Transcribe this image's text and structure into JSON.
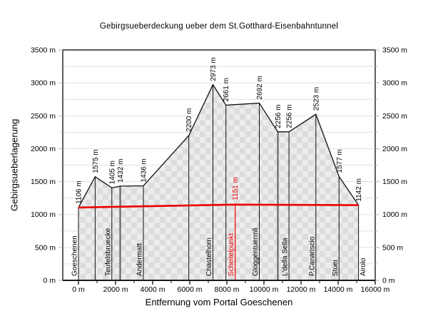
{
  "chart_data": {
    "type": "area",
    "title": "Gebirgsueberdeckung ueber dem St.Gotthard-Eisenbahntunnel",
    "xlabel": "Entfernung vom Portal Goeschenen",
    "ylabel": "Gebirgsueberlagerung",
    "xlim": [
      0,
      16000
    ],
    "ylim": [
      0,
      3500
    ],
    "x_major_step": 2000,
    "x_minor_step": 1000,
    "y_major_step": 500,
    "y_minor_step": 250,
    "grid": "horizontal every 250 m, light gray",
    "legend": "none",
    "axes_mirrored_left_right": true,
    "x_tick_labels": [
      "0 m",
      "2000 m",
      "4000 m",
      "6000 m",
      "8000 m",
      "10000 m",
      "12000 m",
      "14000 m",
      "16000 m"
    ],
    "y_tick_labels": [
      "0 m",
      "500 m",
      "1000 m",
      "1500 m",
      "2000 m",
      "2500 m",
      "3000 m",
      "3500 m"
    ],
    "profile_points": [
      {
        "distance_m": 0,
        "elevation_m": 1106,
        "label": "1106 m",
        "place": "Goeschenen"
      },
      {
        "distance_m": 900,
        "elevation_m": 1575,
        "label": "1575 m"
      },
      {
        "distance_m": 1800,
        "elevation_m": 1405,
        "label": "1405 m",
        "place": "Teufelsbruecke"
      },
      {
        "distance_m": 2250,
        "elevation_m": 1432,
        "label": "1432 m",
        "thick_line": true
      },
      {
        "distance_m": 3500,
        "elevation_m": 1436,
        "label": "1436 m",
        "place": "Andermatt"
      },
      {
        "distance_m": 5950,
        "elevation_m": 2200,
        "label": "2200 m"
      },
      {
        "distance_m": 7250,
        "elevation_m": 2973,
        "label": "2973 m",
        "place": "Chastelhorn"
      },
      {
        "distance_m": 7950,
        "elevation_m": 2661,
        "label": "2661 m"
      },
      {
        "distance_m": 9750,
        "elevation_m": 2692,
        "label": "2692 m",
        "place": "Gloggentuermli"
      },
      {
        "distance_m": 10750,
        "elevation_m": 2256,
        "label": "2256 m",
        "thick_line": true
      },
      {
        "distance_m": 11350,
        "elevation_m": 2256,
        "label": "2256 m",
        "place": "L'della Sella"
      },
      {
        "distance_m": 12800,
        "elevation_m": 2523,
        "label": "2523 m",
        "place": "P.Canariscio"
      },
      {
        "distance_m": 14050,
        "elevation_m": 1577,
        "label": "1577 m",
        "place": "Stuei"
      },
      {
        "distance_m": 15100,
        "elevation_m": 1142,
        "label": "1142 m",
        "place": "Airolo",
        "place_side": "right"
      }
    ],
    "tunnel_line": {
      "points": [
        [
          0,
          1106
        ],
        [
          8450,
          1151
        ],
        [
          15100,
          1142
        ]
      ],
      "apex": {
        "distance_m": 8450,
        "elevation_m": 1151,
        "label": "1151 m",
        "name": "Scheitelpunkt"
      }
    },
    "colors": {
      "profile_line": "#111111",
      "tunnel_line": "#ee0000",
      "grid": "#e0e0e0",
      "tick": "#b8b8b8",
      "frame": "#1a1a1a",
      "fill_light": "#ececec",
      "fill_dark": "#dcdcdc",
      "thick_marker_line": "#666666"
    }
  }
}
